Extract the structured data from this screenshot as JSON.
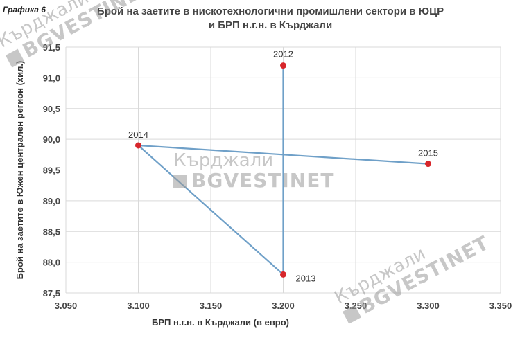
{
  "figure_label": "Графика 6",
  "chart_data": {
    "type": "scatter",
    "title_line1": "Брой на заетите в нискотехнологични промишлени сектори в ЮЦР",
    "title_line2": "и БРП н.г.н. в Кърджали",
    "xlabel": "БРП н.г.н. в Кърджали (в евро)",
    "ylabel": "Брой на заетите в Южен централен регион (хил.)",
    "xlim": [
      3050,
      3350
    ],
    "ylim": [
      87.5,
      91.5
    ],
    "x_ticks": [
      "3.050",
      "3.100",
      "3.150",
      "3.200",
      "3.250",
      "3.300",
      "3.350"
    ],
    "y_ticks": [
      "87,5",
      "88,0",
      "88,5",
      "89,0",
      "89,5",
      "90,0",
      "90,5",
      "91,0",
      "91,5"
    ],
    "grid": true,
    "connected_in_order": true,
    "points": [
      {
        "label": "2012",
        "x": 3200,
        "y": 91.2
      },
      {
        "label": "2013",
        "x": 3200,
        "y": 87.8
      },
      {
        "label": "2014",
        "x": 3100,
        "y": 89.9
      },
      {
        "label": "2015",
        "x": 3300,
        "y": 89.6
      }
    ],
    "line_color": "#6fa0c8",
    "marker_color": "#d7262b"
  },
  "watermark": {
    "top": "Кърджали",
    "bottom": "BGVESTINET"
  }
}
